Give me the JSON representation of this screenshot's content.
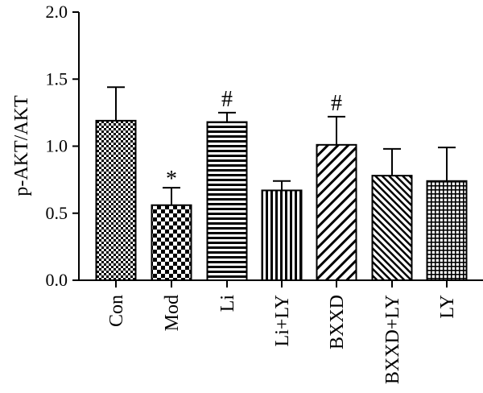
{
  "chart_data": {
    "type": "bar",
    "title": "",
    "xlabel": "",
    "ylabel": "p-AKT/AKT",
    "ylim": [
      0,
      2.0
    ],
    "yticks": [
      0.0,
      0.5,
      1.0,
      1.5,
      2.0
    ],
    "ytick_labels": [
      "0.0",
      "0.5",
      "1.0",
      "1.5",
      "2.0"
    ],
    "grid": false,
    "legend": "none",
    "categories": [
      "Con",
      "Mod",
      "Li",
      "Li+LY",
      "BXXD",
      "BXXD+LY",
      "LY"
    ],
    "values": [
      1.19,
      0.56,
      1.18,
      0.67,
      1.01,
      0.78,
      0.74
    ],
    "errors": [
      0.25,
      0.13,
      0.07,
      0.07,
      0.21,
      0.2,
      0.25
    ],
    "annotations": [
      "",
      "*",
      "#",
      "",
      "#",
      "",
      ""
    ],
    "patterns": [
      "checker-fine",
      "checker-coarse",
      "horizontal-lines",
      "vertical-lines",
      "diagonal-wide",
      "diagonal-fine",
      "grid"
    ],
    "colors": {
      "ink": "#000000",
      "background": "#ffffff"
    }
  }
}
